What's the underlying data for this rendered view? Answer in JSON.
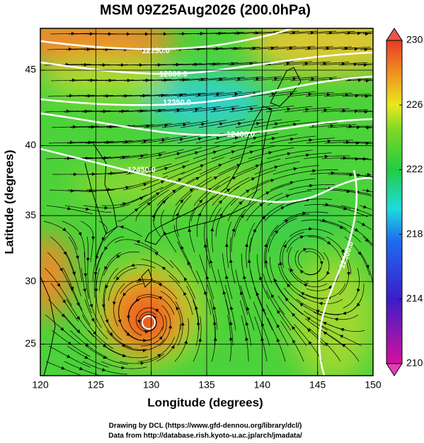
{
  "chart_data": {
    "type": "map",
    "title": "MSM 09Z25Aug2026 (200.0hPa)",
    "xlabel": "Longitude (degrees)",
    "ylabel": "Latitude  (degrees)",
    "projection": "mercator",
    "xlim": [
      120,
      150
    ],
    "ylim": [
      22.4,
      47.6
    ],
    "xticks": [
      120,
      125,
      130,
      135,
      140,
      145,
      150
    ],
    "yticks": [
      25,
      30,
      35,
      40,
      45
    ],
    "grid": true,
    "colorbar": {
      "lim": [
        210,
        230
      ],
      "ticks": [
        210,
        214,
        218,
        222,
        226,
        230
      ]
    },
    "contour_levels": [
      {
        "value": 12250,
        "label": "12250.0"
      },
      {
        "value": 12300,
        "label": "12300.0"
      },
      {
        "value": 12350,
        "label": "12350.0"
      },
      {
        "value": 12400,
        "label": "12400.0"
      },
      {
        "value": 12450,
        "label": "12450.0"
      },
      {
        "value": 12500,
        "label": "12500.0"
      }
    ]
  },
  "footer": {
    "lines": [
      "Drawing by DCL (https://www.gfd-dennou.org/library/dcl/)",
      "Data from http://database.rish.kyoto-u.ac.jp/arch/jmadata/"
    ]
  }
}
